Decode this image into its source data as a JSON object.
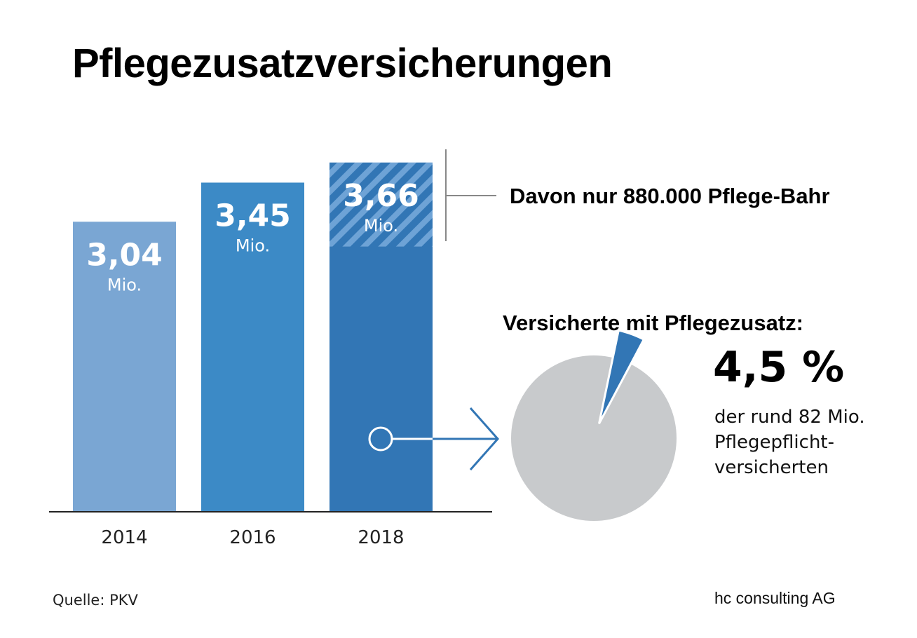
{
  "title": "Pflegezusatzversicherungen",
  "chart_data": {
    "type": "bar",
    "categories": [
      "2014",
      "2016",
      "2018"
    ],
    "values": [
      3.04,
      3.45,
      3.66
    ],
    "value_labels": [
      "3,04",
      "3,45",
      "3,66"
    ],
    "unit_label": "Mio.",
    "highlight": {
      "category": "2018",
      "value": 0.88,
      "label": "Davon nur 880.000 Pflege-Bahr"
    },
    "ylim": [
      0,
      4.1
    ],
    "grid": false,
    "colors": [
      "#7aa6d3",
      "#3c8ac6",
      "#3276b5"
    ]
  },
  "pie": {
    "heading": "Versicherte mit Pflegezusatz:",
    "percent_value": 4.5,
    "percent_label": "4,5 %",
    "description": [
      "der rund 82 Mio.",
      "Pflegepflicht-",
      "versicherten"
    ],
    "colors": {
      "rest": "#c8cacc",
      "share": "#3276b5"
    }
  },
  "source": "Quelle: PKV",
  "brand": "hc consulting AG"
}
